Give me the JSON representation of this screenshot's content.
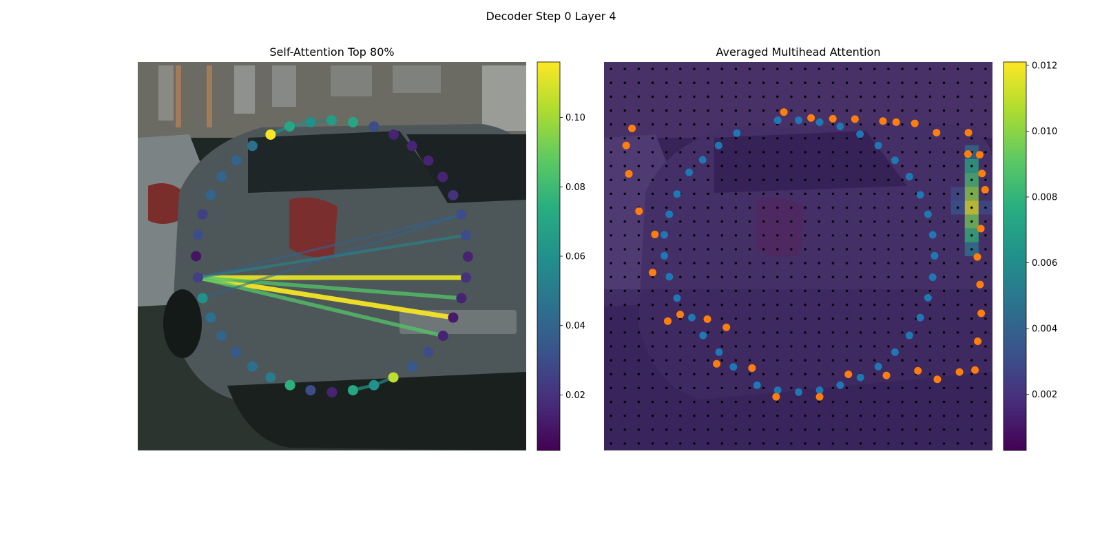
{
  "figure": {
    "suptitle": "Decoder Step 0 Layer 4"
  },
  "colors": {
    "background_dark": "#1a231f",
    "ground": "#27302b",
    "building": "#5c6160",
    "car_body": "#444c50",
    "grid_tint": "#3b2a57",
    "grid_dot": "#000000",
    "blue_points": "#1f77b4",
    "orange_points": "#ff7f0e"
  },
  "chart_data": [
    {
      "type": "scatter",
      "title": "Self-Attention Top 80%",
      "colormap": "viridis",
      "colorbar": {
        "ticks": [
          0.02,
          0.04,
          0.06,
          0.08,
          0.1
        ],
        "tick_labels": [
          "0.02",
          "0.04",
          "0.06",
          "0.08",
          "0.10"
        ],
        "range": [
          0.004,
          0.116
        ]
      },
      "xlim": [
        0,
        1
      ],
      "ylim": [
        0,
        1
      ],
      "points": [
        {
          "x": 0.342,
          "y": 0.813,
          "v": 0.115
        },
        {
          "x": 0.391,
          "y": 0.834,
          "v": 0.07
        },
        {
          "x": 0.445,
          "y": 0.845,
          "v": 0.06
        },
        {
          "x": 0.499,
          "y": 0.85,
          "v": 0.066
        },
        {
          "x": 0.554,
          "y": 0.845,
          "v": 0.07
        },
        {
          "x": 0.608,
          "y": 0.834,
          "v": 0.03
        },
        {
          "x": 0.659,
          "y": 0.813,
          "v": 0.015
        },
        {
          "x": 0.706,
          "y": 0.784,
          "v": 0.015
        },
        {
          "x": 0.748,
          "y": 0.746,
          "v": 0.015
        },
        {
          "x": 0.785,
          "y": 0.704,
          "v": 0.015
        },
        {
          "x": 0.812,
          "y": 0.657,
          "v": 0.02
        },
        {
          "x": 0.833,
          "y": 0.607,
          "v": 0.03
        },
        {
          "x": 0.845,
          "y": 0.554,
          "v": 0.03
        },
        {
          "x": 0.85,
          "y": 0.499,
          "v": 0.015
        },
        {
          "x": 0.845,
          "y": 0.445,
          "v": 0.02
        },
        {
          "x": 0.833,
          "y": 0.392,
          "v": 0.015
        },
        {
          "x": 0.812,
          "y": 0.342,
          "v": 0.012
        },
        {
          "x": 0.786,
          "y": 0.295,
          "v": 0.015
        },
        {
          "x": 0.748,
          "y": 0.253,
          "v": 0.03
        },
        {
          "x": 0.706,
          "y": 0.216,
          "v": 0.035
        },
        {
          "x": 0.658,
          "y": 0.188,
          "v": 0.105
        },
        {
          "x": 0.608,
          "y": 0.168,
          "v": 0.06
        },
        {
          "x": 0.554,
          "y": 0.155,
          "v": 0.07
        },
        {
          "x": 0.5,
          "y": 0.15,
          "v": 0.015
        },
        {
          "x": 0.445,
          "y": 0.155,
          "v": 0.03
        },
        {
          "x": 0.392,
          "y": 0.168,
          "v": 0.075
        },
        {
          "x": 0.342,
          "y": 0.188,
          "v": 0.05
        },
        {
          "x": 0.295,
          "y": 0.216,
          "v": 0.045
        },
        {
          "x": 0.253,
          "y": 0.253,
          "v": 0.035
        },
        {
          "x": 0.216,
          "y": 0.295,
          "v": 0.04
        },
        {
          "x": 0.188,
          "y": 0.342,
          "v": 0.045
        },
        {
          "x": 0.167,
          "y": 0.392,
          "v": 0.06
        },
        {
          "x": 0.155,
          "y": 0.445,
          "v": 0.025
        },
        {
          "x": 0.15,
          "y": 0.5,
          "v": 0.01
        },
        {
          "x": 0.155,
          "y": 0.555,
          "v": 0.03
        },
        {
          "x": 0.167,
          "y": 0.608,
          "v": 0.025
        },
        {
          "x": 0.188,
          "y": 0.658,
          "v": 0.04
        },
        {
          "x": 0.216,
          "y": 0.705,
          "v": 0.04
        },
        {
          "x": 0.254,
          "y": 0.747,
          "v": 0.04
        },
        {
          "x": 0.295,
          "y": 0.784,
          "v": 0.045
        }
      ],
      "edges": [
        {
          "from": [
            0.155,
            0.445
          ],
          "to": [
            0.85,
            0.445
          ],
          "v": 0.112
        },
        {
          "from": [
            0.155,
            0.445
          ],
          "to": [
            0.812,
            0.342
          ],
          "v": 0.115
        },
        {
          "from": [
            0.155,
            0.445
          ],
          "to": [
            0.833,
            0.392
          ],
          "v": 0.085
        },
        {
          "from": [
            0.155,
            0.445
          ],
          "to": [
            0.786,
            0.295
          ],
          "v": 0.085
        },
        {
          "from": [
            0.155,
            0.445
          ],
          "to": [
            0.845,
            0.554
          ],
          "v": 0.055
        },
        {
          "from": [
            0.155,
            0.445
          ],
          "to": [
            0.833,
            0.607
          ],
          "v": 0.04
        },
        {
          "from": [
            0.167,
            0.392
          ],
          "to": [
            0.833,
            0.607
          ],
          "v": 0.04
        },
        {
          "from": [
            0.342,
            0.813
          ],
          "to": [
            0.391,
            0.834
          ],
          "v": 0.06
        },
        {
          "from": [
            0.391,
            0.834
          ],
          "to": [
            0.445,
            0.845
          ],
          "v": 0.06
        },
        {
          "from": [
            0.445,
            0.845
          ],
          "to": [
            0.499,
            0.85
          ],
          "v": 0.05
        },
        {
          "from": [
            0.553,
            0.155
          ],
          "to": [
            0.608,
            0.168
          ],
          "v": 0.065
        },
        {
          "from": [
            0.608,
            0.168
          ],
          "to": [
            0.658,
            0.188
          ],
          "v": 0.06
        }
      ]
    },
    {
      "type": "heatmap",
      "title": "Averaged Multihead Attention",
      "colormap": "viridis",
      "colorbar": {
        "ticks": [
          0.002,
          0.004,
          0.006,
          0.008,
          0.01,
          0.012
        ],
        "tick_labels": [
          "0.002",
          "0.004",
          "0.006",
          "0.008",
          "0.010",
          "0.012"
        ],
        "range": [
          0.0003,
          0.0121
        ]
      },
      "grid": {
        "rows": 28,
        "cols": 28,
        "base_value": 0.0015
      },
      "hot_cells": [
        {
          "col": 26,
          "row": 7,
          "v": 0.0075
        },
        {
          "col": 26,
          "row": 8,
          "v": 0.0085
        },
        {
          "col": 26,
          "row": 9,
          "v": 0.01
        },
        {
          "col": 26,
          "row": 10,
          "v": 0.0115
        },
        {
          "col": 26,
          "row": 11,
          "v": 0.0095
        },
        {
          "col": 26,
          "row": 12,
          "v": 0.008
        },
        {
          "col": 26,
          "row": 6,
          "v": 0.0045
        },
        {
          "col": 26,
          "row": 13,
          "v": 0.005
        },
        {
          "col": 25,
          "row": 9,
          "v": 0.003
        },
        {
          "col": 25,
          "row": 10,
          "v": 0.0035
        },
        {
          "col": 27,
          "row": 10,
          "v": 0.003
        }
      ],
      "series": [
        {
          "color": "#1f77b4",
          "points": [
            [
              0.447,
              0.85
            ],
            [
              0.501,
              0.85
            ],
            [
              0.555,
              0.845
            ],
            [
              0.608,
              0.834
            ],
            [
              0.659,
              0.814
            ],
            [
              0.706,
              0.785
            ],
            [
              0.749,
              0.747
            ],
            [
              0.786,
              0.705
            ],
            [
              0.814,
              0.658
            ],
            [
              0.834,
              0.608
            ],
            [
              0.846,
              0.555
            ],
            [
              0.851,
              0.501
            ],
            [
              0.846,
              0.446
            ],
            [
              0.834,
              0.393
            ],
            [
              0.814,
              0.342
            ],
            [
              0.786,
              0.296
            ],
            [
              0.749,
              0.253
            ],
            [
              0.706,
              0.216
            ],
            [
              0.66,
              0.188
            ],
            [
              0.608,
              0.168
            ],
            [
              0.555,
              0.155
            ],
            [
              0.501,
              0.15
            ],
            [
              0.447,
              0.155
            ],
            [
              0.394,
              0.168
            ],
            [
              0.333,
              0.215
            ],
            [
              0.296,
              0.253
            ],
            [
              0.255,
              0.296
            ],
            [
              0.226,
              0.342
            ],
            [
              0.188,
              0.392
            ],
            [
              0.168,
              0.447
            ],
            [
              0.155,
              0.501
            ],
            [
              0.155,
              0.555
            ],
            [
              0.168,
              0.608
            ],
            [
              0.188,
              0.66
            ],
            [
              0.219,
              0.716
            ],
            [
              0.254,
              0.748
            ],
            [
              0.295,
              0.785
            ],
            [
              0.342,
              0.817
            ]
          ]
        },
        {
          "color": "#ff7f0e",
          "points": [
            [
              0.463,
              0.871
            ],
            [
              0.533,
              0.856
            ],
            [
              0.589,
              0.854
            ],
            [
              0.646,
              0.853
            ],
            [
              0.718,
              0.848
            ],
            [
              0.752,
              0.845
            ],
            [
              0.8,
              0.842
            ],
            [
              0.856,
              0.818
            ],
            [
              0.938,
              0.818
            ],
            [
              0.937,
              0.763
            ],
            [
              0.981,
              0.671
            ],
            [
              0.967,
              0.761
            ],
            [
              0.973,
              0.713
            ],
            [
              0.97,
              0.571
            ],
            [
              0.961,
              0.498
            ],
            [
              0.968,
              0.427
            ],
            [
              0.971,
              0.353
            ],
            [
              0.962,
              0.281
            ],
            [
              0.955,
              0.207
            ],
            [
              0.915,
              0.202
            ],
            [
              0.858,
              0.183
            ],
            [
              0.808,
              0.205
            ],
            [
              0.727,
              0.193
            ],
            [
              0.629,
              0.196
            ],
            [
              0.555,
              0.138
            ],
            [
              0.443,
              0.138
            ],
            [
              0.381,
              0.212
            ],
            [
              0.29,
              0.223
            ],
            [
              0.315,
              0.317
            ],
            [
              0.266,
              0.338
            ],
            [
              0.196,
              0.35
            ],
            [
              0.164,
              0.333
            ],
            [
              0.125,
              0.458
            ],
            [
              0.131,
              0.556
            ],
            [
              0.09,
              0.616
            ],
            [
              0.064,
              0.712
            ],
            [
              0.057,
              0.785
            ],
            [
              0.072,
              0.829
            ]
          ]
        }
      ]
    }
  ]
}
